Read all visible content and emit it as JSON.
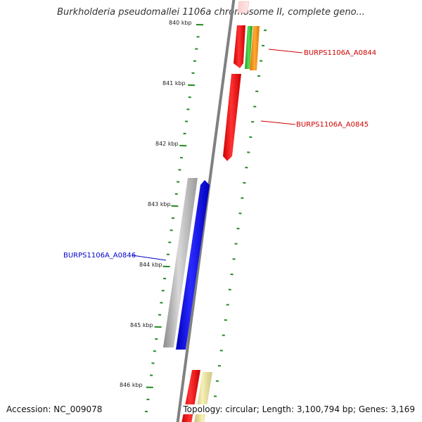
{
  "title": "Burkholderia pseudomallei 1106a chromosome II, complete geno...",
  "accession": "Accession: NC_009078",
  "topology": "Topology: circular; Length: 3,100,794 bp; Genes: 3,169",
  "tick_labels": [
    "840 kbp",
    "841 kbp",
    "842 kbp",
    "843 kbp",
    "844 kbp",
    "845 kbp",
    "846 kbp"
  ],
  "gene_labels": [
    {
      "name": "BURPS1106A_A0844",
      "color": "#cc0000"
    },
    {
      "name": "BURPS1106A_A0845",
      "color": "#cc0000"
    },
    {
      "name": "BURPS1106A_A0846",
      "color": "#0000cc"
    }
  ],
  "colors": {
    "backbone": "#808080",
    "tick": "#228b22",
    "forward_gene": "#ff0000",
    "reverse_gene": "#0000ff",
    "gray_feature": "#bbbbbb",
    "green_feature": "#33cc33",
    "orange_feature": "#ff9900",
    "pale_yellow_feature": "#eee8a0",
    "pale_red_feature": "#ffcccc"
  }
}
